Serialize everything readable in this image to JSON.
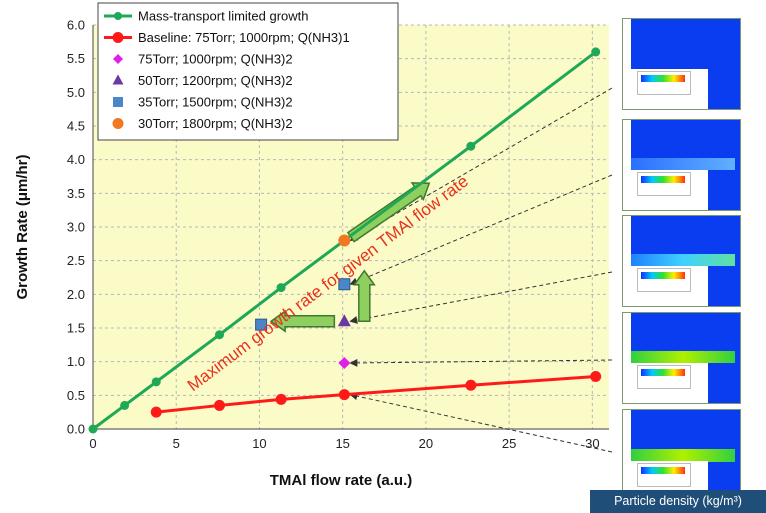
{
  "chart_data": {
    "type": "scatter",
    "xlabel": "TMAl flow rate (a.u.)",
    "ylabel": "Growth Rate (μm/hr)",
    "xlim": [
      0,
      31
    ],
    "ylim": [
      0,
      6.0
    ],
    "x_ticks": [
      "0",
      "5",
      "10",
      "15",
      "20",
      "25",
      "30"
    ],
    "y_ticks": [
      "0.0",
      "0.5",
      "1.0",
      "1.5",
      "2.0",
      "2.5",
      "3.0",
      "3.5",
      "4.0",
      "4.5",
      "5.0",
      "5.5",
      "6.0"
    ],
    "grid": true,
    "legend_position": "top-left",
    "series": [
      {
        "name": "Mass-transport limited growth",
        "style": "line-dot",
        "color": "#1fa855",
        "x": [
          0,
          1.9,
          3.8,
          7.6,
          11.3,
          15.1,
          22.7,
          30.2
        ],
        "y": [
          0.0,
          0.35,
          0.7,
          1.4,
          2.1,
          2.8,
          4.2,
          5.6
        ]
      },
      {
        "name": "Baseline: 75Torr; 1000rpm; Q(NH3)1",
        "style": "line-dot",
        "color": "#ff1a1a",
        "x": [
          3.8,
          7.6,
          11.3,
          15.1,
          22.7,
          30.2
        ],
        "y": [
          0.25,
          0.35,
          0.44,
          0.51,
          0.65,
          0.78
        ]
      },
      {
        "name": "75Torr; 1000rpm; Q(NH3)2",
        "style": "diamond",
        "color": "#e020e8",
        "x": [
          15.1
        ],
        "y": [
          0.98
        ]
      },
      {
        "name": "50Torr; 1200rpm; Q(NH3)2",
        "style": "triangle",
        "color": "#6a3aa0",
        "x": [
          15.1
        ],
        "y": [
          1.6
        ]
      },
      {
        "name": "35Torr; 1500rpm; Q(NH3)2",
        "style": "square",
        "color": "#4a86c8",
        "x": [
          15.1,
          10.1
        ],
        "y": [
          2.15,
          1.55
        ]
      },
      {
        "name": "30Torr; 1800rpm; Q(NH3)2",
        "style": "circle",
        "color": "#f07820",
        "x": [
          15.1
        ],
        "y": [
          2.8
        ]
      }
    ],
    "annotation": "Maximum growth rate for given TMAl flow rate",
    "colors": {
      "plot_bg": "#fbfbc8",
      "grid": "#b8b8b8",
      "arrow_fill": "#8fcf5f",
      "arrow_edge": "#3e7a2c",
      "label_bg": "#1f4e79"
    }
  },
  "density_label": "Particle density (kg/m³)",
  "thumbnails": [
    {
      "name": "thumb-1",
      "band": "none"
    },
    {
      "name": "thumb-2",
      "band": "faint"
    },
    {
      "name": "thumb-3",
      "band": "light"
    },
    {
      "name": "thumb-4",
      "band": "strong"
    },
    {
      "name": "thumb-5",
      "band": "strong"
    }
  ]
}
